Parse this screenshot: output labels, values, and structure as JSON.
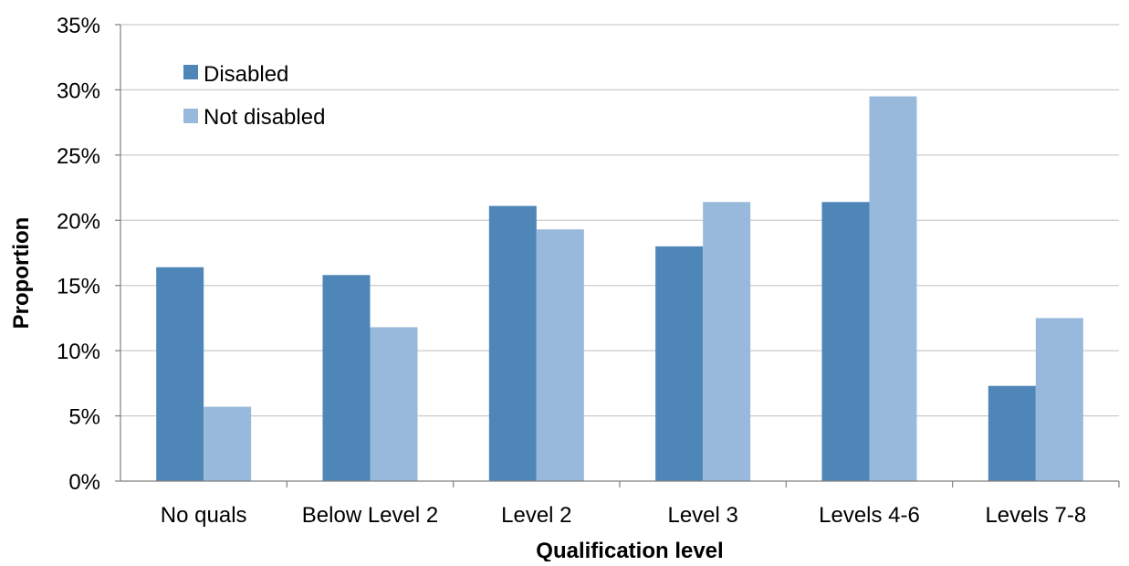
{
  "chart_data": {
    "type": "bar",
    "title": "",
    "xlabel": "Qualification level",
    "ylabel": "Proportion",
    "ylim": [
      0,
      35
    ],
    "yticks": [
      "0%",
      "5%",
      "10%",
      "15%",
      "20%",
      "25%",
      "30%",
      "35%"
    ],
    "ytick_values": [
      0,
      5,
      10,
      15,
      20,
      25,
      30,
      35
    ],
    "grid": true,
    "legend_position": "top-left",
    "categories": [
      "No quals",
      "Below Level 2",
      "Level 2",
      "Level 3",
      "Levels 4-6",
      "Levels 7-8"
    ],
    "series": [
      {
        "name": "Disabled",
        "color": "#4f86b8",
        "values": [
          16.4,
          15.8,
          21.1,
          18.0,
          21.4,
          7.3
        ]
      },
      {
        "name": "Not disabled",
        "color": "#98b9dc",
        "values": [
          5.7,
          11.8,
          19.3,
          21.4,
          29.5,
          12.5
        ]
      }
    ],
    "colors": {
      "gridline": "#bfbfbf",
      "axis": "#7f7f7f"
    }
  }
}
